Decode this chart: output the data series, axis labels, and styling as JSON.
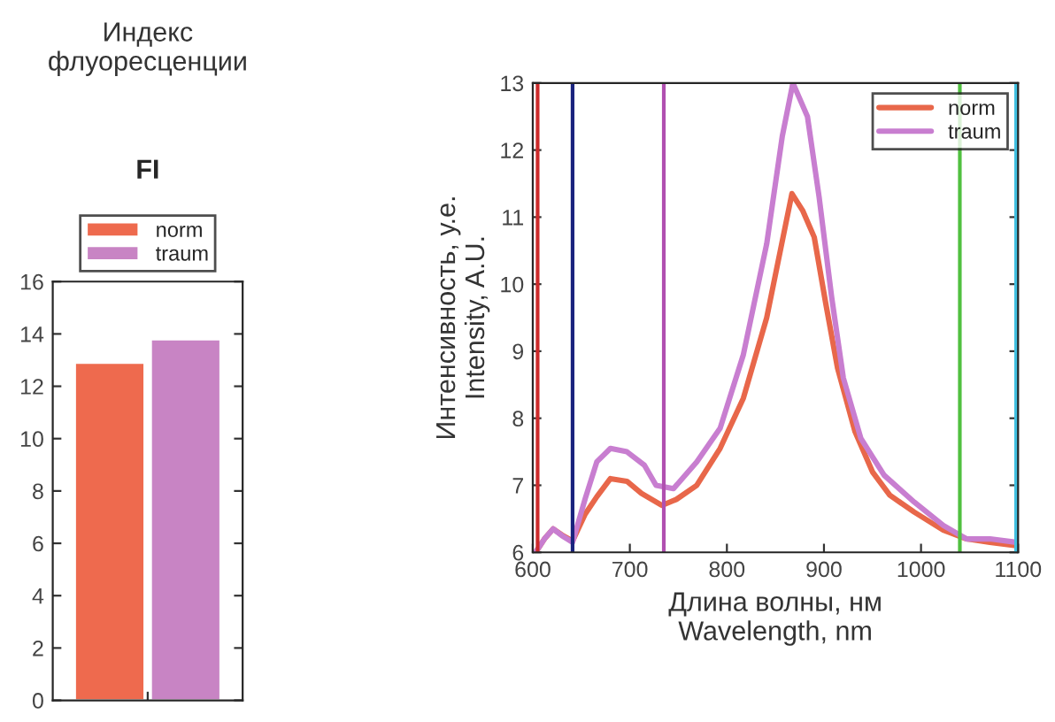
{
  "chart_data": [
    {
      "type": "bar",
      "title": "Индекс\nфлуоресценции",
      "subtitle": "FI",
      "categories": [
        null
      ],
      "ylim": [
        0,
        16
      ],
      "yticks": [
        0,
        2,
        4,
        6,
        8,
        10,
        12,
        14,
        16
      ],
      "legend": "top",
      "series": [
        {
          "name": "norm",
          "color": "#ee6a4e",
          "values": [
            12.9
          ]
        },
        {
          "name": "traum",
          "color": "#c884c4",
          "values": [
            13.8
          ]
        }
      ]
    },
    {
      "type": "line",
      "xlabel": "Длина волны, нм\nWavelength, nm",
      "ylabel": "Интенсивность, у.е.\nIntensity, A.U.",
      "xlim": [
        600,
        1100
      ],
      "xticks": [
        600,
        700,
        800,
        900,
        1000,
        1100
      ],
      "ylim": [
        6,
        13
      ],
      "yticks": [
        6,
        7,
        8,
        9,
        10,
        11,
        12,
        13
      ],
      "legend": "top right",
      "ref_lines": [
        {
          "axis": "x",
          "value": 605,
          "color": "#cc2a2a"
        },
        {
          "axis": "x",
          "value": 641,
          "color": "#1a237e"
        },
        {
          "axis": "x",
          "value": 735,
          "color": "#b050b0"
        },
        {
          "axis": "x",
          "value": 1040,
          "color": "#50c040"
        },
        {
          "axis": "x",
          "value": 1098,
          "color": "#40c0e0"
        }
      ],
      "series": [
        {
          "name": "norm",
          "color": "#e8674a",
          "x": [
            603,
            612,
            621,
            630,
            641,
            654,
            666,
            680,
            697,
            712,
            733,
            748,
            769,
            793,
            817,
            841,
            867,
            878,
            890,
            902,
            914,
            932,
            950,
            968,
            993,
            1023,
            1047,
            1071,
            1098
          ],
          "values": [
            6.0,
            6.2,
            6.35,
            6.26,
            6.17,
            6.57,
            6.83,
            7.1,
            7.06,
            6.88,
            6.7,
            6.79,
            7.0,
            7.55,
            8.3,
            9.5,
            11.35,
            11.1,
            10.7,
            9.7,
            8.75,
            7.8,
            7.2,
            6.85,
            6.6,
            6.33,
            6.2,
            6.15,
            6.1
          ]
        },
        {
          "name": "traum",
          "color": "#c87ed0",
          "x": [
            603,
            612,
            621,
            630,
            641,
            654,
            666,
            680,
            697,
            715,
            727,
            745,
            769,
            793,
            817,
            841,
            857,
            868,
            883,
            895,
            908,
            920,
            938,
            962,
            993,
            1023,
            1047,
            1071,
            1098
          ],
          "values": [
            6.0,
            6.2,
            6.35,
            6.25,
            6.15,
            6.8,
            7.35,
            7.55,
            7.5,
            7.3,
            7.0,
            6.95,
            7.35,
            7.85,
            8.95,
            10.6,
            12.2,
            13.0,
            12.5,
            11.3,
            9.8,
            8.6,
            7.7,
            7.15,
            6.75,
            6.4,
            6.2,
            6.2,
            6.15
          ]
        }
      ]
    }
  ]
}
